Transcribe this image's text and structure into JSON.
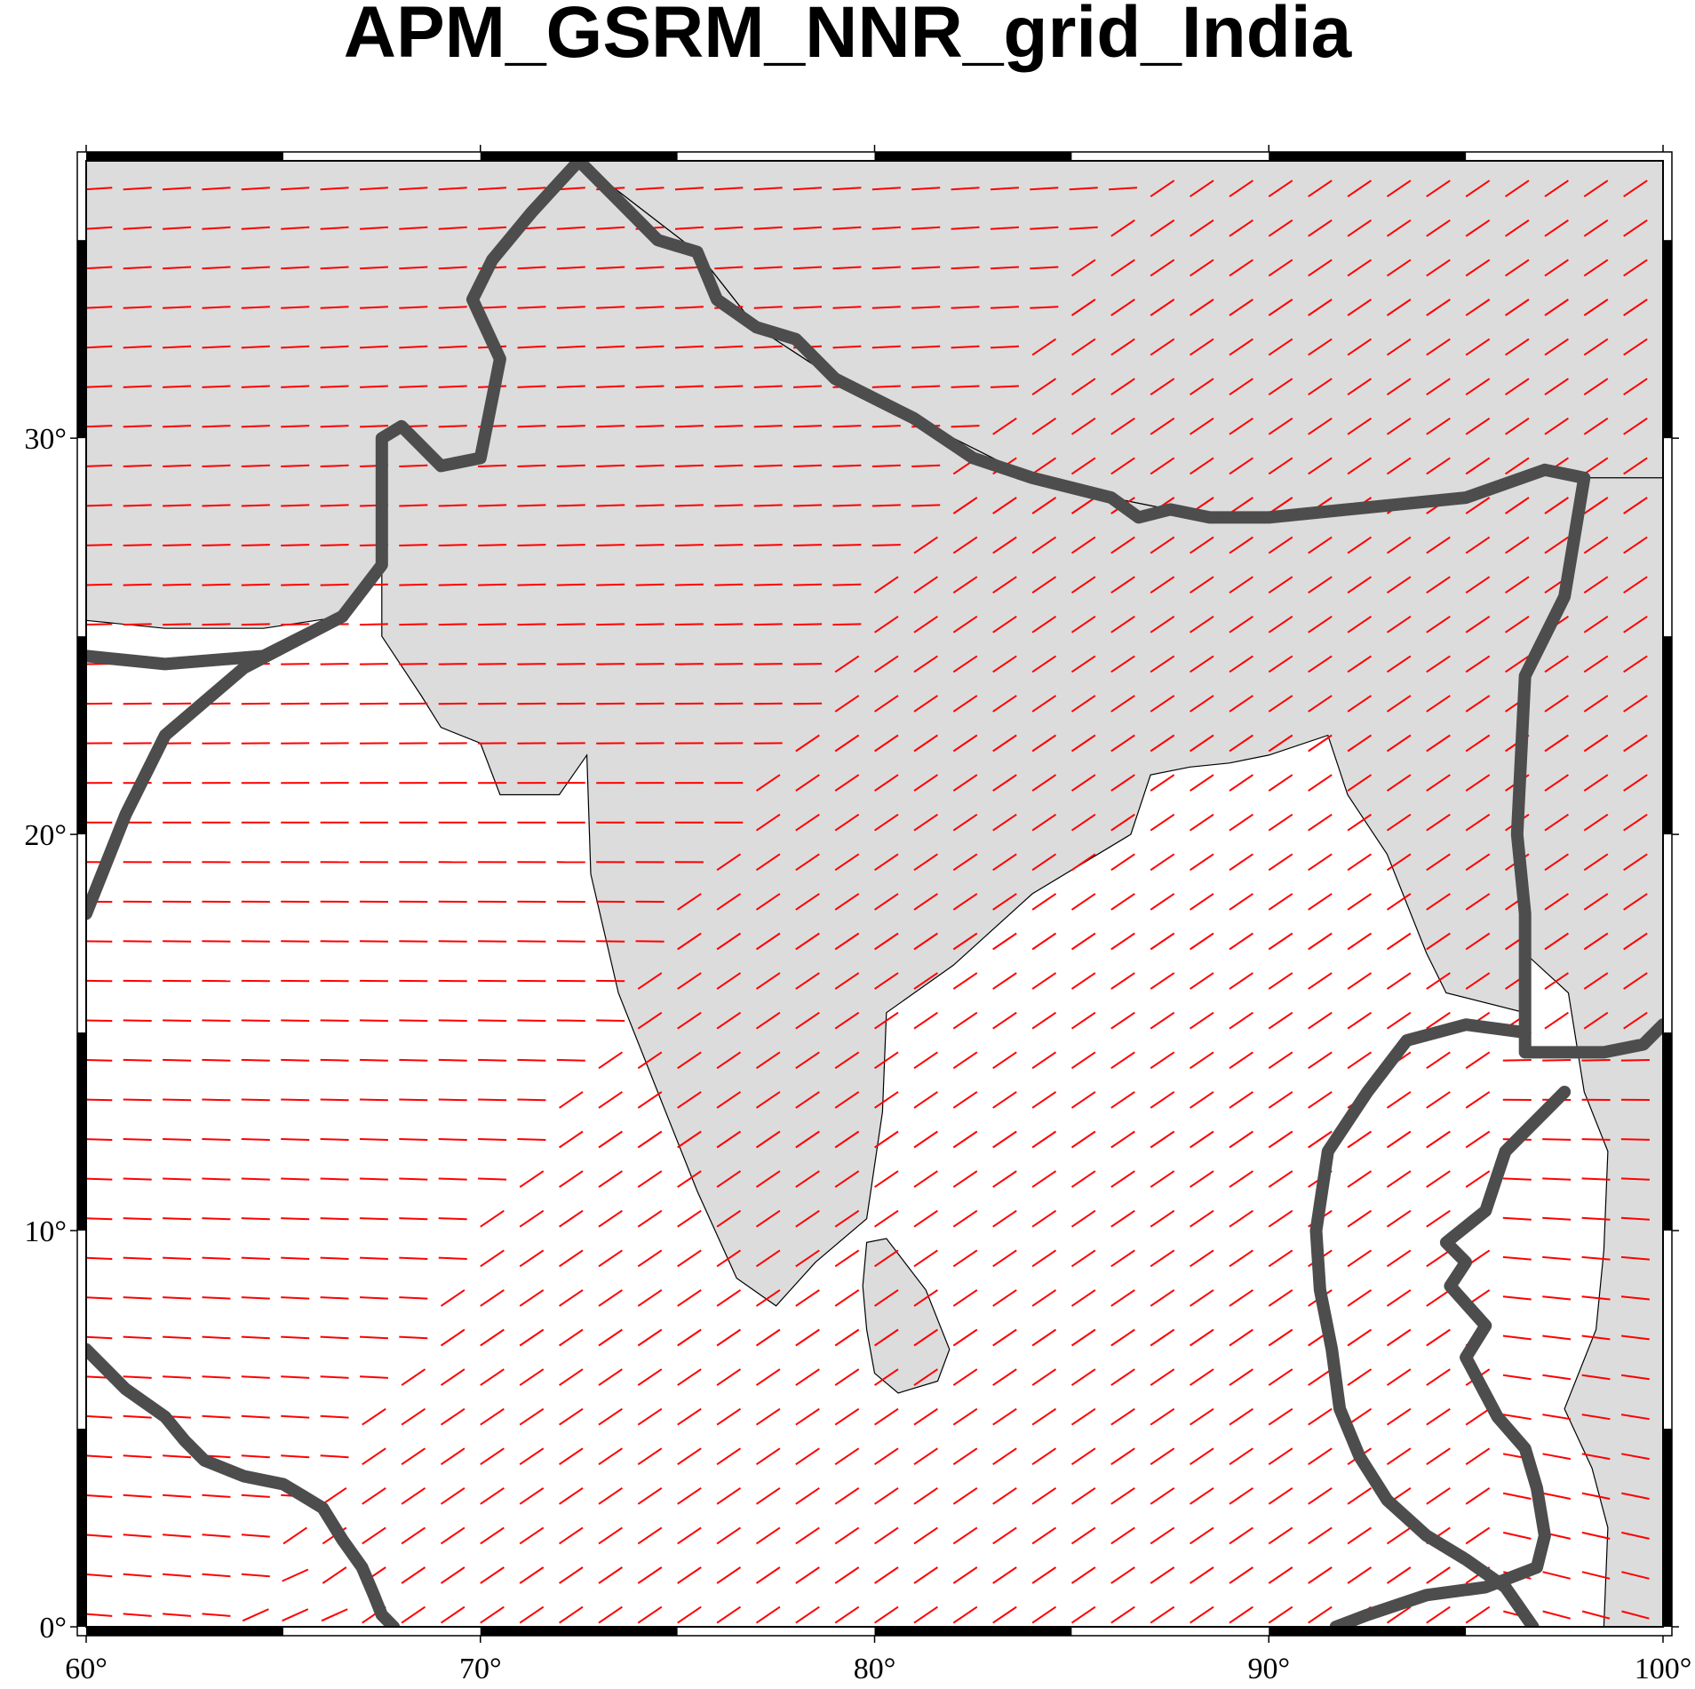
{
  "title": "APM_GSRM_NNR_grid_India",
  "axes": {
    "lon_ticks": [
      {
        "value": 60,
        "label": "60°"
      },
      {
        "value": 70,
        "label": "70°"
      },
      {
        "value": 80,
        "label": "80°"
      },
      {
        "value": 90,
        "label": "90°"
      },
      {
        "value": 100,
        "label": "100°"
      }
    ],
    "lat_ticks": [
      {
        "value": 0,
        "label": "0°"
      },
      {
        "value": 10,
        "label": "10°"
      },
      {
        "value": 20,
        "label": "20°"
      },
      {
        "value": 30,
        "label": "30°"
      }
    ],
    "lon_range": [
      60,
      100
    ],
    "lat_range": [
      0,
      37
    ]
  },
  "colors": {
    "vectors": "#ff0000",
    "plate_boundary": "#4d4d4d",
    "land": "#dcdcdc",
    "ocean": "#ffffff",
    "coast": "#000000"
  },
  "plate_boundaries": [
    {
      "id": "india-eurasia",
      "points": [
        [
          60,
          24.5
        ],
        [
          62,
          24.3
        ],
        [
          64.5,
          24.5
        ],
        [
          66.5,
          25.5
        ],
        [
          67.5,
          26.8
        ],
        [
          67.5,
          28.7
        ],
        [
          67.5,
          30
        ],
        [
          68,
          30.3
        ],
        [
          68.5,
          29.8
        ],
        [
          69,
          29.3
        ],
        [
          70,
          29.5
        ],
        [
          70.3,
          31
        ],
        [
          70.5,
          32
        ],
        [
          69.8,
          33.5
        ],
        [
          70.3,
          34.5
        ],
        [
          71.3,
          35.7
        ],
        [
          72.5,
          37
        ],
        [
          73.5,
          36
        ],
        [
          74.5,
          35
        ],
        [
          75.5,
          34.7
        ],
        [
          76,
          33.5
        ],
        [
          77,
          32.8
        ],
        [
          78,
          32.5
        ],
        [
          79,
          31.5
        ],
        [
          80,
          31
        ],
        [
          81,
          30.5
        ],
        [
          82.5,
          29.5
        ],
        [
          84,
          29
        ],
        [
          86,
          28.5
        ],
        [
          86.7,
          28
        ],
        [
          87.5,
          28.2
        ],
        [
          88.5,
          28
        ],
        [
          90,
          28
        ],
        [
          92,
          28.2
        ],
        [
          95,
          28.5
        ],
        [
          97,
          29.2
        ],
        [
          98,
          29
        ],
        [
          97.5,
          26
        ],
        [
          96.5,
          24
        ],
        [
          96.3,
          20
        ],
        [
          96.5,
          18
        ],
        [
          96.5,
          14.5
        ],
        [
          98.5,
          14.5
        ],
        [
          99.5,
          14.7
        ],
        [
          100,
          15.2
        ]
      ]
    },
    {
      "id": "india-arabia",
      "points": [
        [
          60,
          18
        ],
        [
          61,
          20.5
        ],
        [
          62,
          22.5
        ],
        [
          64,
          24.2
        ],
        [
          66.5,
          25.5
        ]
      ]
    },
    {
      "id": "carlsberg-ridge",
      "points": [
        [
          60,
          7
        ],
        [
          61,
          6
        ],
        [
          62,
          5.3
        ],
        [
          62.5,
          4.7
        ],
        [
          63,
          4.2
        ],
        [
          64,
          3.8
        ],
        [
          65,
          3.6
        ],
        [
          65.5,
          3.3
        ],
        [
          66,
          3
        ],
        [
          66.5,
          2.2
        ],
        [
          67,
          1.5
        ],
        [
          67.3,
          0.8
        ],
        [
          67.5,
          0.3
        ],
        [
          67.8,
          0
        ]
      ]
    },
    {
      "id": "sunda-arc-outer",
      "points": [
        [
          96.5,
          15
        ],
        [
          95,
          15.2
        ],
        [
          93.5,
          14.8
        ],
        [
          92.5,
          13.5
        ],
        [
          91.5,
          12
        ],
        [
          91.2,
          10
        ],
        [
          91.3,
          8.5
        ],
        [
          91.6,
          7
        ],
        [
          91.8,
          5.5
        ],
        [
          92.3,
          4.3
        ],
        [
          93,
          3.2
        ],
        [
          94,
          2.3
        ],
        [
          95,
          1.7
        ],
        [
          96,
          1
        ],
        [
          96.7,
          0
        ]
      ]
    },
    {
      "id": "sunda-arc-inner",
      "points": [
        [
          97.5,
          13.5
        ],
        [
          96,
          12
        ],
        [
          95.5,
          10.5
        ],
        [
          94.5,
          9.7
        ],
        [
          95,
          9.2
        ],
        [
          94.6,
          8.6
        ],
        [
          95.5,
          7.6
        ],
        [
          95,
          6.8
        ],
        [
          95.8,
          5.3
        ],
        [
          96.5,
          4.5
        ],
        [
          96.8,
          3.5
        ],
        [
          97,
          2.3
        ],
        [
          96.8,
          1.5
        ],
        [
          95.5,
          1
        ],
        [
          94,
          0.8
        ],
        [
          92.5,
          0.3
        ],
        [
          91.7,
          0
        ]
      ]
    }
  ],
  "landmasses": [
    {
      "id": "india-peninsula",
      "points": [
        [
          67.5,
          25
        ],
        [
          68.5,
          23.5
        ],
        [
          69,
          22.7
        ],
        [
          70,
          22.3
        ],
        [
          70.5,
          21
        ],
        [
          72,
          21
        ],
        [
          72.7,
          22
        ],
        [
          72.8,
          19
        ],
        [
          73.5,
          16
        ],
        [
          74.5,
          13.5
        ],
        [
          75.5,
          11
        ],
        [
          76.5,
          8.8
        ],
        [
          77.5,
          8.1
        ],
        [
          78.5,
          9.2
        ],
        [
          79.8,
          10.3
        ],
        [
          80.2,
          13
        ],
        [
          80.3,
          15.5
        ],
        [
          82,
          16.7
        ],
        [
          84,
          18.5
        ],
        [
          86.5,
          20
        ],
        [
          87,
          21.5
        ],
        [
          88,
          21.7
        ],
        [
          89,
          21.8
        ],
        [
          90,
          22
        ],
        [
          91.5,
          22.5
        ],
        [
          92,
          21
        ],
        [
          93,
          19.5
        ],
        [
          94,
          17
        ],
        [
          94.5,
          16
        ],
        [
          96.5,
          15.5
        ],
        [
          96.5,
          18
        ],
        [
          96.3,
          20
        ],
        [
          96.5,
          24
        ],
        [
          97.5,
          26
        ],
        [
          98,
          29
        ],
        [
          97,
          29.2
        ],
        [
          95,
          28.5
        ],
        [
          92,
          28.2
        ],
        [
          88.5,
          28
        ],
        [
          86,
          28.5
        ],
        [
          84,
          29
        ],
        [
          81,
          30.5
        ],
        [
          79,
          31.5
        ],
        [
          77,
          32.8
        ],
        [
          75.5,
          34.7
        ],
        [
          72.5,
          37
        ],
        [
          70.3,
          34.5
        ],
        [
          69.8,
          33.5
        ],
        [
          70.5,
          32
        ],
        [
          70,
          29.5
        ],
        [
          69,
          29.3
        ],
        [
          68,
          30.3
        ],
        [
          67.5,
          30
        ],
        [
          67.5,
          26.8
        ]
      ]
    },
    {
      "id": "sri-lanka",
      "points": [
        [
          79.8,
          9.7
        ],
        [
          80.3,
          9.8
        ],
        [
          81.3,
          8.5
        ],
        [
          81.9,
          7
        ],
        [
          81.6,
          6.2
        ],
        [
          80.6,
          5.9
        ],
        [
          80,
          6.4
        ],
        [
          79.8,
          7.5
        ],
        [
          79.7,
          8.6
        ]
      ]
    },
    {
      "id": "iran-afghan",
      "points": [
        [
          60,
          37
        ],
        [
          72.5,
          37
        ],
        [
          71.3,
          35.7
        ],
        [
          70.3,
          34.5
        ],
        [
          69.8,
          33.5
        ],
        [
          70.5,
          32
        ],
        [
          70,
          29.5
        ],
        [
          69,
          29.3
        ],
        [
          68,
          30.3
        ],
        [
          67.5,
          30
        ],
        [
          67.5,
          26.8
        ],
        [
          66.5,
          25.5
        ],
        [
          64.5,
          25.2
        ],
        [
          62,
          25.2
        ],
        [
          60,
          25.4
        ]
      ]
    },
    {
      "id": "tibet-china",
      "points": [
        [
          72.5,
          37
        ],
        [
          100,
          37
        ],
        [
          100,
          29
        ],
        [
          98,
          29
        ],
        [
          97,
          29.2
        ],
        [
          95,
          28.5
        ],
        [
          92,
          28.2
        ],
        [
          88.5,
          28
        ],
        [
          86,
          28.5
        ],
        [
          84,
          29
        ],
        [
          81,
          30.5
        ],
        [
          79,
          31.5
        ],
        [
          77,
          32.8
        ],
        [
          75.5,
          34.7
        ]
      ]
    },
    {
      "id": "indochina",
      "points": [
        [
          98,
          29
        ],
        [
          100,
          29
        ],
        [
          100,
          0
        ],
        [
          98.5,
          0
        ],
        [
          98.6,
          2.5
        ],
        [
          98.2,
          4
        ],
        [
          97.5,
          5.5
        ],
        [
          98.3,
          7.5
        ],
        [
          98.5,
          9.5
        ],
        [
          98.6,
          12
        ],
        [
          98,
          13.5
        ],
        [
          97.6,
          16
        ],
        [
          96.5,
          17
        ],
        [
          96.3,
          20
        ],
        [
          96.5,
          24
        ],
        [
          97.5,
          26
        ]
      ]
    }
  ]
}
